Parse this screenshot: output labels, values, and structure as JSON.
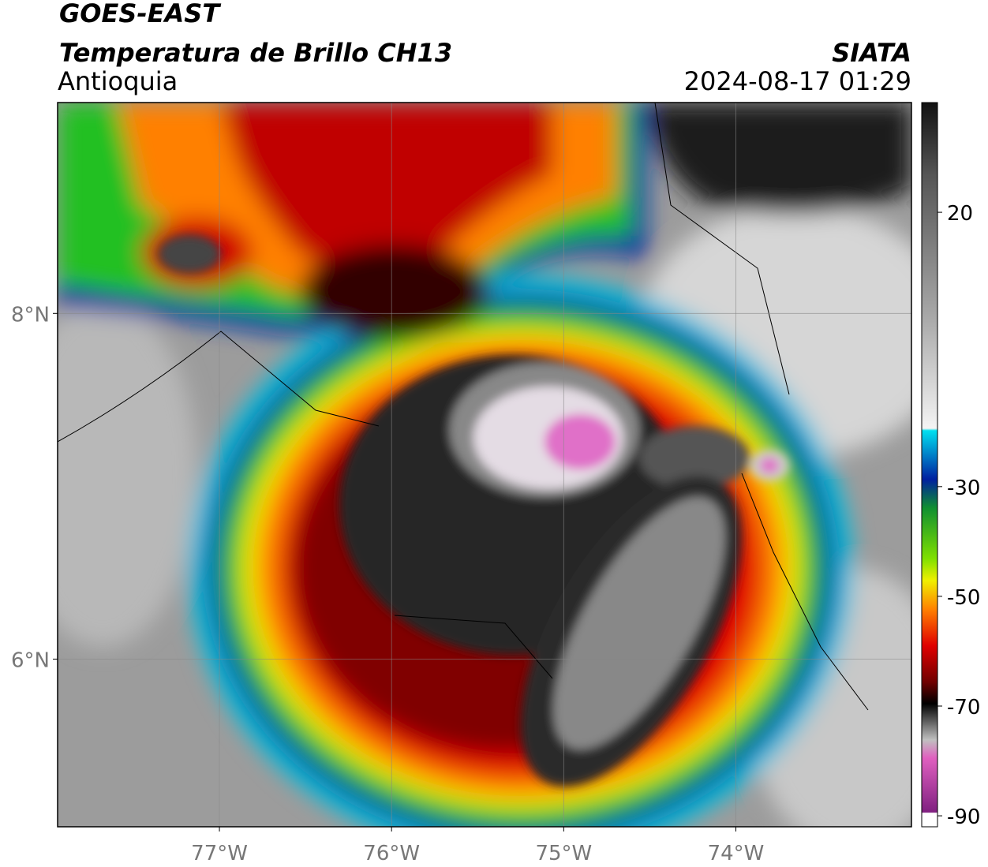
{
  "header": {
    "satellite": "GOES-EAST",
    "product": "Temperatura de Brillo CH13",
    "region": "Antioquia",
    "source": "SIATA",
    "datetime": "2024-08-17 01:29"
  },
  "map": {
    "type": "map",
    "xlim": [
      -77.94,
      -72.98
    ],
    "ylim": [
      5.03,
      9.22
    ],
    "xticks": [
      {
        "value": -77,
        "label": "77°W"
      },
      {
        "value": -76,
        "label": "76°W"
      },
      {
        "value": -75,
        "label": "75°W"
      },
      {
        "value": -74,
        "label": "74°W"
      }
    ],
    "yticks": [
      {
        "value": 8,
        "label": "8°N"
      },
      {
        "value": 6,
        "label": "6°N"
      }
    ],
    "grid": true
  },
  "colorbar": {
    "lim": [
      -92,
      40
    ],
    "ticks": [
      20,
      -30,
      -50,
      -70,
      -90
    ]
  }
}
